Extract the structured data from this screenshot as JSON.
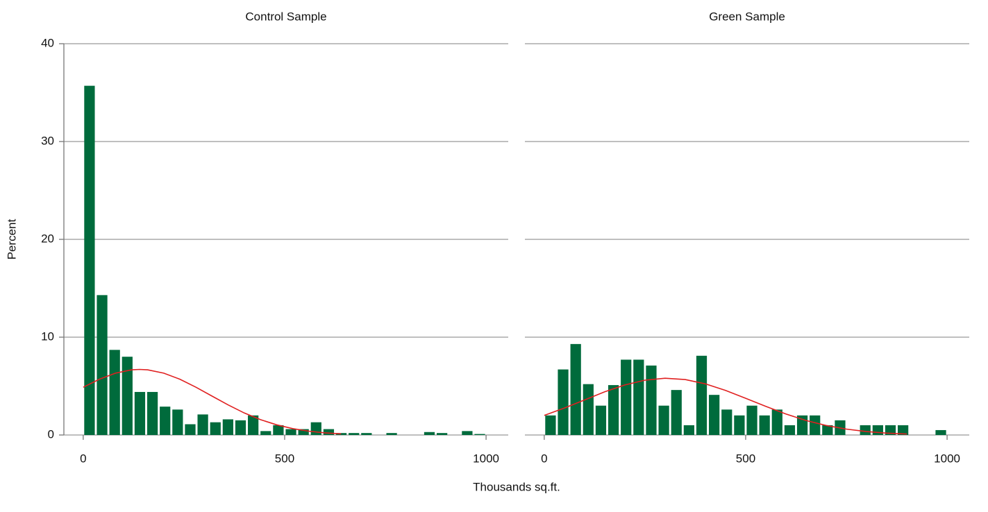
{
  "chart_data": [
    {
      "type": "histogram",
      "title": "Control Sample",
      "ylabel": "Percent",
      "xlabel": "Thousands sq.ft.",
      "color": "#006b3c",
      "bins": [
        0,
        31.25,
        62.5,
        93.75,
        125,
        156.25,
        187.5,
        218.75,
        250,
        281.25,
        312.5,
        343.75,
        375,
        406.25,
        437.5,
        468.75,
        500,
        531.25,
        562.5,
        593.75,
        625,
        656.25,
        687.5,
        718.75,
        750,
        781.25,
        812.5,
        843.75,
        875,
        906.25,
        937.5,
        968.75,
        1000
      ],
      "values": [
        35.7,
        14.3,
        8.7,
        8.0,
        4.4,
        4.4,
        2.9,
        2.6,
        1.1,
        2.1,
        1.3,
        1.6,
        1.5,
        2.0,
        0.4,
        1.0,
        0.6,
        0.6,
        1.3,
        0.6,
        0.2,
        0.2,
        0.2,
        0,
        0.2,
        0,
        0,
        0.3,
        0.2,
        0,
        0.4,
        0.1
      ],
      "curve": {
        "color": "#e02020",
        "x": [
          0,
          40,
          80,
          120,
          140,
          160,
          200,
          240,
          280,
          320,
          360,
          400,
          440,
          480,
          520,
          560,
          600,
          640
        ],
        "y": [
          4.88,
          5.7,
          6.32,
          6.66,
          6.7,
          6.66,
          6.32,
          5.7,
          4.88,
          3.97,
          3.07,
          2.25,
          1.57,
          1.04,
          0.65,
          0.39,
          0.22,
          0.12
        ]
      },
      "xlim": [
        -48,
        1055
      ],
      "xticks": [
        0,
        500,
        1000
      ],
      "ylim": [
        0,
        40
      ],
      "yticks": [
        0,
        10,
        20,
        30,
        40
      ],
      "ytick_labels": true,
      "grid": true
    },
    {
      "type": "histogram",
      "title": "Green Sample",
      "color": "#006b3c",
      "bins": [
        0,
        31.25,
        62.5,
        93.75,
        125,
        156.25,
        187.5,
        218.75,
        250,
        281.25,
        312.5,
        343.75,
        375,
        406.25,
        437.5,
        468.75,
        500,
        531.25,
        562.5,
        593.75,
        625,
        656.25,
        687.5,
        718.75,
        750,
        781.25,
        812.5,
        843.75,
        875,
        906.25,
        937.5,
        968.75,
        1000
      ],
      "values": [
        2.0,
        6.7,
        9.3,
        5.2,
        3.0,
        5.1,
        7.7,
        7.7,
        7.1,
        3.0,
        4.6,
        1.0,
        8.1,
        4.1,
        2.6,
        2.0,
        3.0,
        2.0,
        2.6,
        1.0,
        2.0,
        2.0,
        1.0,
        1.5,
        0,
        1.0,
        1.0,
        1.0,
        1.0,
        0,
        0,
        0.5
      ],
      "curve": {
        "color": "#e02020",
        "x": [
          0,
          50,
          100,
          150,
          200,
          250,
          300,
          350,
          400,
          450,
          500,
          550,
          600,
          650,
          700,
          750,
          800,
          850,
          900
        ],
        "y": [
          2.0,
          2.76,
          3.58,
          4.41,
          5.11,
          5.6,
          5.8,
          5.67,
          5.23,
          4.56,
          3.75,
          2.92,
          2.14,
          1.48,
          0.97,
          0.6,
          0.35,
          0.19,
          0.1
        ]
      },
      "xlim": [
        -48,
        1055
      ],
      "xticks": [
        0,
        500,
        1000
      ],
      "ylim": [
        0,
        40
      ],
      "yticks": [
        0,
        10,
        20,
        30,
        40
      ],
      "ytick_labels": false,
      "grid": true
    }
  ]
}
